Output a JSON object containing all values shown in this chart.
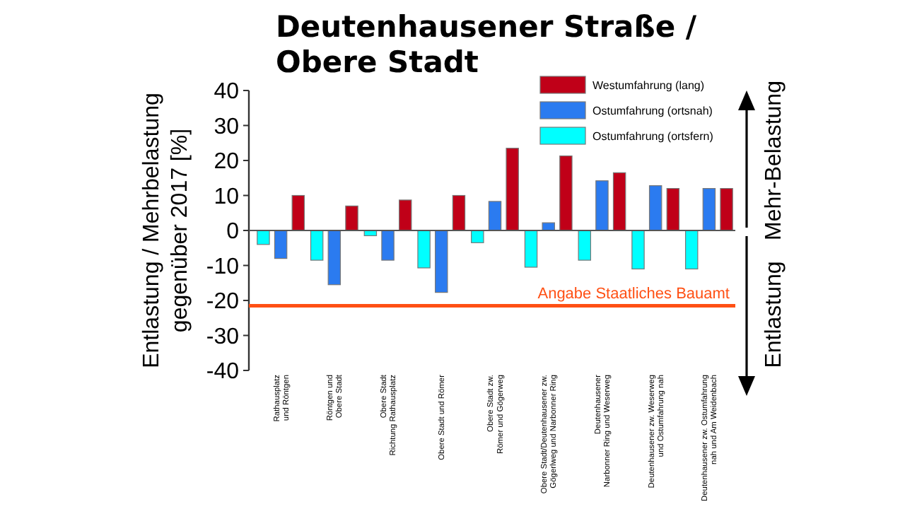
{
  "chart_data": {
    "type": "bar",
    "title": "Deutenhausener Straße /\nObere Stadt",
    "ylabel": "Entlastung / Mehrbelastung\ngegenüber 2017 [%]",
    "categories": [
      "Rathausplatz\nund Röntgen",
      "Röntgen und\nObere Stadt",
      "Obere Stadt\nRichtung Rathausplatz",
      "Obere Stadt und Römer",
      "Obere Stadt zw.\nRömer und Gögerweg",
      "Obere Stadt/Deutenhausener zw.\nGögerlweg und Narbonner Ring",
      "Deutenhausener\nNarbonner Ring und Weserweg",
      "Deutenhausener zw. Weserweg\nund Ostumfahrung nah",
      "Deutenhausener zw. Ostumfahrung\nnah und Am Weidenbach"
    ],
    "series": [
      {
        "name": "Ostumfahrung (ortsfern)",
        "color": "#00ffff",
        "values": [
          -4,
          -8.5,
          -1.5,
          -10.7,
          -3.5,
          -10.5,
          -8.5,
          -11,
          -11
        ]
      },
      {
        "name": "Ostumfahrung (ortsnah)",
        "color": "#2b7bf0",
        "values": [
          -8,
          -15.5,
          -8.5,
          -17.7,
          8.3,
          2.2,
          14.2,
          12.8,
          12
        ]
      },
      {
        "name": "Westumfahrung (lang)",
        "color": "#c00018",
        "values": [
          10,
          7,
          8.7,
          10,
          23.5,
          21.3,
          16.5,
          12,
          12
        ]
      }
    ],
    "ylim": [
      -40,
      40
    ],
    "yticks": [
      -40,
      -30,
      -20,
      -10,
      0,
      10,
      20,
      30,
      40
    ],
    "grid": false,
    "legend": "top right",
    "ref_lines": [
      {
        "axis": "y",
        "value": 0,
        "color": "#555555"
      },
      {
        "axis": "y",
        "value": -21.5,
        "label": "Angabe Staatliches Bauamt",
        "color": "#ff5014"
      }
    ],
    "annotations": [
      "Mehr-Belastung",
      "Entlastung"
    ]
  }
}
